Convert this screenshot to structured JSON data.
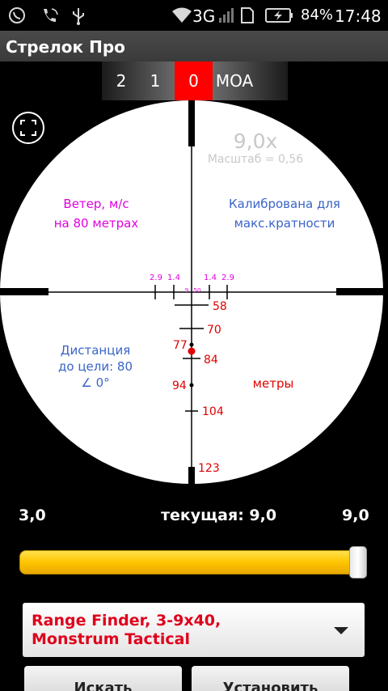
{
  "status_bar": {
    "network": "3G",
    "battery": "84%",
    "time": "17:48",
    "icons": [
      "viber-icon",
      "phone-icon",
      "usb-icon",
      "wifi-icon",
      "signal-icon",
      "sim-icon",
      "battery-icon"
    ]
  },
  "app": {
    "title": "Стрелок Про"
  },
  "zoom_selector": {
    "options": [
      "2",
      "1",
      "0",
      "MOA"
    ],
    "selected": "0"
  },
  "scope": {
    "magnification": "9,0x",
    "scale": "Масштаб = 0,56",
    "wind_label_line1": "Ветер, м/с",
    "wind_label_line2": "на 80 метрах",
    "calibrated_line1": "Калибрована для",
    "calibrated_line2": "макс.кратности",
    "distance_line1": "Дистанция",
    "distance_line2": "до цели: 80",
    "distance_line3": "∠ 0°",
    "units_label": "метры",
    "wind_ticks": [
      "2.9",
      "1.4",
      "9",
      "50",
      "1.4",
      "2.9"
    ],
    "range_marks": [
      "58",
      "70",
      "77",
      "84",
      "94",
      "104",
      "123"
    ],
    "colors": {
      "magenta": "#e000e0",
      "blue": "#3a64c8",
      "red": "#e00000",
      "reticle": "#000000"
    }
  },
  "zoom_slider": {
    "min_label": "3,0",
    "current_label": "текущая: 9,0",
    "max_label": "9,0",
    "value_fraction": 1.0
  },
  "scope_select": {
    "selected": "Range Finder, 3-9x40, Monstrum Tactical"
  },
  "buttons": {
    "left": "Искать",
    "right": "Установить"
  }
}
